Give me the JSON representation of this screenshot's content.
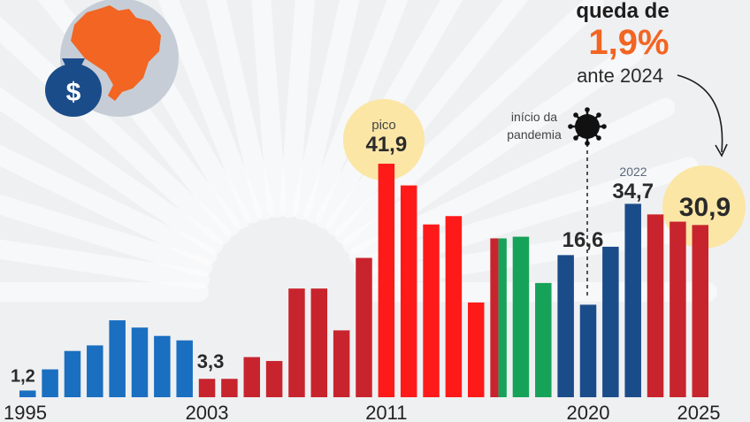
{
  "chart_data": {
    "type": "bar",
    "categories": [
      "1995",
      "1996",
      "1997",
      "1998",
      "1999",
      "2000",
      "2001",
      "2002",
      "2003",
      "2004",
      "2005",
      "2006",
      "2007",
      "2008",
      "2009",
      "2010",
      "2011",
      "2012",
      "2013",
      "2014",
      "2015",
      "2016",
      "2017",
      "2018",
      "2019",
      "2020",
      "2021",
      "2022",
      "2023",
      "2024",
      "2025"
    ],
    "values": [
      1.2,
      5.0,
      8.3,
      9.3,
      13.8,
      12.5,
      11.0,
      10.2,
      3.3,
      3.3,
      7.2,
      6.5,
      19.5,
      19.5,
      12.0,
      25.0,
      41.9,
      38.0,
      31.0,
      32.5,
      17.0,
      28.5,
      28.8,
      20.5,
      25.5,
      16.6,
      27.0,
      34.7,
      32.8,
      31.5,
      30.9
    ],
    "colors": [
      "#1a6fc0",
      "#1a6fc0",
      "#1a6fc0",
      "#1a6fc0",
      "#1a6fc0",
      "#1a6fc0",
      "#1a6fc0",
      "#1a6fc0",
      "#c8242d",
      "#c8242d",
      "#c8242d",
      "#c8242d",
      "#c8242d",
      "#c8242d",
      "#c8242d",
      "#c8242d",
      "#ff1a1a",
      "#ff1a1a",
      "#ff1a1a",
      "#ff1a1a",
      "#ff1a1a",
      "#c8242d",
      "#17a25a",
      "#17a25a",
      "#1b4c8a",
      "#1b4c8a",
      "#1b4c8a",
      "#1b4c8a",
      "#c8242d",
      "#c8242d",
      "#c8242d"
    ],
    "split_colors": {
      "21": [
        "#c8242d",
        "#17a25a"
      ]
    },
    "x_ticks": [
      "1995",
      "2003",
      "2011",
      "2020",
      "2025"
    ],
    "value_labels": [
      {
        "index": 0,
        "text": "1,2"
      },
      {
        "index": 8,
        "text": "3,3"
      },
      {
        "index": 16,
        "text": "41,9"
      },
      {
        "index": 25,
        "text": "16,6"
      },
      {
        "index": 27,
        "text": "34,7"
      },
      {
        "index": 30,
        "text": "30,9"
      }
    ],
    "ylim": [
      0,
      45
    ],
    "grid": false,
    "title": "",
    "xlabel": "",
    "ylabel": ""
  },
  "annotations": {
    "headline_line1": "queda de",
    "headline_pct": "1,9%",
    "headline_line3": "ante 2024",
    "peak_label": "pico",
    "peak_value": "41,9",
    "pandemic_line1": "início da",
    "pandemic_line2": "pandemia",
    "year_2022": "2022",
    "last_value": "30,9"
  },
  "colors": {
    "background": "#eff0f2",
    "highlight_circle": "#fbe6a6",
    "accent_orange": "#f26522",
    "last_value_red": "#c8242d",
    "money_bag": "#1b4c8a",
    "brazil_map": "#f26522",
    "icon_circle": "#c6cdd6"
  },
  "icons": [
    "money-bag-icon",
    "brazil-map-icon",
    "virus-icon",
    "curved-arrow-icon"
  ]
}
